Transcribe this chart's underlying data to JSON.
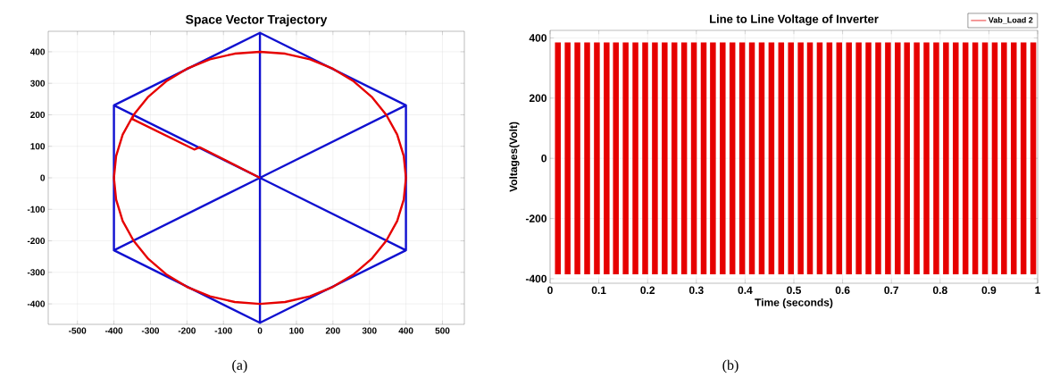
{
  "chart_data": [
    {
      "type": "line",
      "title": "Space Vector Trajectory",
      "xlim": [
        -580,
        560
      ],
      "ylim": [
        -465,
        465
      ],
      "xticks": [
        -500,
        -400,
        -300,
        -200,
        -100,
        0,
        100,
        200,
        300,
        400,
        500
      ],
      "yticks": [
        -400,
        -300,
        -200,
        -100,
        0,
        100,
        200,
        300,
        400
      ],
      "grid": true,
      "annotations": [
        "(a)"
      ],
      "series": [
        {
          "color": "#1010d0",
          "x": [
            0,
            400,
            400,
            0,
            -400,
            -400,
            0,
            0,
            0,
            -400,
            0,
            400,
            400,
            0,
            -400
          ],
          "values": [
            460,
            230,
            -230,
            -460,
            -230,
            230,
            460,
            0,
            -460,
            -230,
            0,
            230,
            -230,
            0,
            230
          ]
        },
        {
          "color": "#e60000",
          "x": [
            0,
            -165,
            -180,
            -350,
            -346,
            -376,
            -394,
            -400,
            -394,
            -376,
            -346,
            -306,
            -257,
            -200,
            -137,
            -69,
            0,
            69,
            137,
            200,
            257,
            306,
            346,
            376,
            394,
            400,
            394,
            376,
            346,
            306,
            257,
            200,
            137,
            69,
            0,
            -69,
            -137,
            -200,
            -257,
            -306,
            -346
          ],
          "values": [
            0,
            97,
            90,
            187,
            200,
            137,
            69,
            0,
            -69,
            -137,
            -200,
            -257,
            -306,
            -346,
            -376,
            -394,
            -400,
            -394,
            -376,
            -346,
            -306,
            -257,
            -200,
            -137,
            -69,
            0,
            69,
            137,
            200,
            257,
            306,
            346,
            376,
            394,
            400,
            394,
            376,
            346,
            306,
            257,
            200
          ]
        }
      ]
    },
    {
      "type": "line",
      "title": "Line to Line Voltage of Inverter",
      "xlabel": "Time (seconds)",
      "ylabel": "Voltages(Volt)",
      "xlim": [
        0,
        1
      ],
      "ylim": [
        -415,
        425
      ],
      "xticks": [
        0,
        0.1,
        0.2,
        0.3,
        0.4,
        0.5,
        0.6,
        0.7,
        0.8,
        0.9,
        1
      ],
      "yticks": [
        -400,
        -200,
        0,
        200,
        400
      ],
      "grid": true,
      "legend": "top right",
      "annotations": [
        "(b)"
      ],
      "series": [
        {
          "name": "Vab_Load 2",
          "color": "#e60000",
          "x": [
            0.016,
            0.016,
            null,
            0.036,
            0.036,
            null,
            0.056,
            0.056,
            null,
            0.076,
            0.076,
            null,
            0.096,
            0.096,
            null,
            0.116,
            0.116,
            null,
            0.135,
            0.135,
            null,
            0.155,
            0.155,
            null,
            0.175,
            0.175,
            null,
            0.195,
            0.195,
            null,
            0.215,
            0.215,
            null,
            0.235,
            0.235,
            null,
            0.255,
            0.255,
            null,
            0.275,
            0.275,
            null,
            0.295,
            0.295,
            null,
            0.315,
            0.315,
            null,
            0.334,
            0.334,
            null,
            0.354,
            0.354,
            null,
            0.374,
            0.374,
            null,
            0.394,
            0.394,
            null,
            0.414,
            0.414,
            null,
            0.434,
            0.434,
            null,
            0.454,
            0.454,
            null,
            0.474,
            0.474,
            null,
            0.494,
            0.494,
            null,
            0.514,
            0.514,
            null,
            0.533,
            0.533,
            null,
            0.553,
            0.553,
            null,
            0.573,
            0.573,
            null,
            0.593,
            0.593,
            null,
            0.613,
            0.613,
            null,
            0.633,
            0.633,
            null,
            0.653,
            0.653,
            null,
            0.673,
            0.673,
            null,
            0.693,
            0.693,
            null,
            0.713,
            0.713,
            null,
            0.732,
            0.732,
            null,
            0.752,
            0.752,
            null,
            0.772,
            0.772,
            null,
            0.792,
            0.792,
            null,
            0.812,
            0.812,
            null,
            0.832,
            0.832,
            null,
            0.852,
            0.852,
            null,
            0.872,
            0.872,
            null,
            0.892,
            0.892,
            null,
            0.912,
            0.912,
            null,
            0.931,
            0.931,
            null,
            0.951,
            0.951,
            null,
            0.971,
            0.971,
            null,
            0.991,
            0.991
          ],
          "values": [
            385,
            -385,
            null,
            385,
            -385,
            null,
            385,
            -385,
            null,
            385,
            -385,
            null,
            385,
            -385,
            null,
            385,
            -385,
            null,
            385,
            -385,
            null,
            385,
            -385,
            null,
            385,
            -385,
            null,
            385,
            -385,
            null,
            385,
            -385,
            null,
            385,
            -385,
            null,
            385,
            -385,
            null,
            385,
            -385,
            null,
            385,
            -385,
            null,
            385,
            -385,
            null,
            385,
            -385,
            null,
            385,
            -385,
            null,
            385,
            -385,
            null,
            385,
            -385,
            null,
            385,
            -385,
            null,
            385,
            -385,
            null,
            385,
            -385,
            null,
            385,
            -385,
            null,
            385,
            -385,
            null,
            385,
            -385,
            null,
            385,
            -385,
            null,
            385,
            -385,
            null,
            385,
            -385,
            null,
            385,
            -385,
            null,
            385,
            -385,
            null,
            385,
            -385,
            null,
            385,
            -385,
            null,
            385,
            -385,
            null,
            385,
            -385,
            null,
            385,
            -385,
            null,
            385,
            -385,
            null,
            385,
            -385,
            null,
            385,
            -385,
            null,
            385,
            -385,
            null,
            385,
            -385,
            null,
            385,
            -385,
            null,
            385,
            -385,
            null,
            385,
            -385,
            null,
            385,
            -385,
            null,
            385,
            -385,
            null,
            385,
            -385,
            null,
            385,
            -385,
            null,
            385,
            -385,
            null,
            385,
            -385
          ]
        }
      ]
    }
  ]
}
